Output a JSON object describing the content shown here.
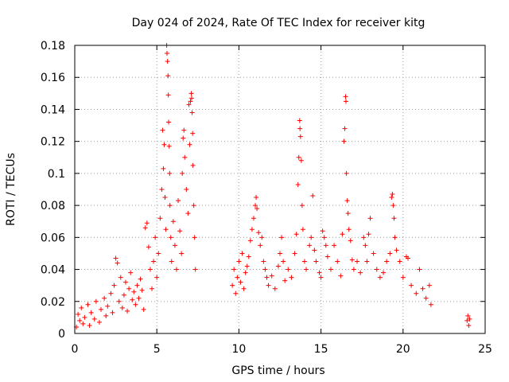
{
  "chart_data": {
    "type": "scatter",
    "title": "Day 024 of 2024, Rate Of TEC Index for receiver kitg",
    "xlabel": "GPS time / hours",
    "ylabel": "ROTI / TECUs",
    "xlim": [
      0,
      25
    ],
    "ylim": [
      0,
      0.18
    ],
    "x_ticks": [
      "0",
      "5",
      "10",
      "15",
      "20",
      "25"
    ],
    "y_ticks": [
      "0",
      "0.02",
      "0.04",
      "0.06",
      "0.08",
      "0.1",
      "0.12",
      "0.14",
      "0.16",
      "0.18"
    ],
    "grid": true,
    "marker": "plus",
    "color": "#ff0000",
    "series": [
      {
        "name": "ROTI",
        "points": [
          [
            0.1,
            0.004
          ],
          [
            0.2,
            0.012
          ],
          [
            0.3,
            0.008
          ],
          [
            0.4,
            0.016
          ],
          [
            0.5,
            0.006
          ],
          [
            0.6,
            0.01
          ],
          [
            0.8,
            0.018
          ],
          [
            0.9,
            0.005
          ],
          [
            1.0,
            0.013
          ],
          [
            1.2,
            0.009
          ],
          [
            1.3,
            0.02
          ],
          [
            1.5,
            0.007
          ],
          [
            1.6,
            0.015
          ],
          [
            1.8,
            0.022
          ],
          [
            1.9,
            0.011
          ],
          [
            2.0,
            0.017
          ],
          [
            2.2,
            0.025
          ],
          [
            2.3,
            0.013
          ],
          [
            2.4,
            0.03
          ],
          [
            2.5,
            0.047
          ],
          [
            2.6,
            0.044
          ],
          [
            2.7,
            0.02
          ],
          [
            2.8,
            0.035
          ],
          [
            2.9,
            0.016
          ],
          [
            3.0,
            0.024
          ],
          [
            3.1,
            0.032
          ],
          [
            3.2,
            0.014
          ],
          [
            3.3,
            0.028
          ],
          [
            3.4,
            0.038
          ],
          [
            3.5,
            0.021
          ],
          [
            3.6,
            0.026
          ],
          [
            3.7,
            0.018
          ],
          [
            3.8,
            0.03
          ],
          [
            3.9,
            0.022
          ],
          [
            4.0,
            0.034
          ],
          [
            4.1,
            0.027
          ],
          [
            4.2,
            0.015
          ],
          [
            4.3,
            0.066
          ],
          [
            4.4,
            0.069
          ],
          [
            4.5,
            0.054
          ],
          [
            4.6,
            0.04
          ],
          [
            4.7,
            0.028
          ],
          [
            4.8,
            0.045
          ],
          [
            4.9,
            0.06
          ],
          [
            5.0,
            0.035
          ],
          [
            5.1,
            0.05
          ],
          [
            5.2,
            0.072
          ],
          [
            5.3,
            0.09
          ],
          [
            5.35,
            0.127
          ],
          [
            5.4,
            0.103
          ],
          [
            5.45,
            0.118
          ],
          [
            5.5,
            0.085
          ],
          [
            5.55,
            0.065
          ],
          [
            5.6,
            0.18
          ],
          [
            5.62,
            0.175
          ],
          [
            5.65,
            0.17
          ],
          [
            5.68,
            0.161
          ],
          [
            5.7,
            0.149
          ],
          [
            5.72,
            0.132
          ],
          [
            5.75,
            0.117
          ],
          [
            5.78,
            0.1
          ],
          [
            5.8,
            0.08
          ],
          [
            5.85,
            0.06
          ],
          [
            5.9,
            0.045
          ],
          [
            6.0,
            0.07
          ],
          [
            6.1,
            0.055
          ],
          [
            6.2,
            0.04
          ],
          [
            6.3,
            0.083
          ],
          [
            6.4,
            0.064
          ],
          [
            6.5,
            0.05
          ],
          [
            6.55,
            0.1
          ],
          [
            6.6,
            0.122
          ],
          [
            6.65,
            0.127
          ],
          [
            6.7,
            0.11
          ],
          [
            6.8,
            0.09
          ],
          [
            6.9,
            0.075
          ],
          [
            6.95,
            0.143
          ],
          [
            7.0,
            0.118
          ],
          [
            7.05,
            0.145
          ],
          [
            7.1,
            0.15
          ],
          [
            7.12,
            0.147
          ],
          [
            7.15,
            0.138
          ],
          [
            7.18,
            0.125
          ],
          [
            7.2,
            0.105
          ],
          [
            7.25,
            0.08
          ],
          [
            7.3,
            0.06
          ],
          [
            7.35,
            0.04
          ],
          [
            9.6,
            0.03
          ],
          [
            9.7,
            0.04
          ],
          [
            9.8,
            0.025
          ],
          [
            9.9,
            0.035
          ],
          [
            10.0,
            0.045
          ],
          [
            10.1,
            0.032
          ],
          [
            10.2,
            0.05
          ],
          [
            10.3,
            0.028
          ],
          [
            10.4,
            0.038
          ],
          [
            10.5,
            0.042
          ],
          [
            10.6,
            0.048
          ],
          [
            10.7,
            0.058
          ],
          [
            10.8,
            0.065
          ],
          [
            10.9,
            0.072
          ],
          [
            11.0,
            0.08
          ],
          [
            11.05,
            0.085
          ],
          [
            11.1,
            0.078
          ],
          [
            11.2,
            0.063
          ],
          [
            11.3,
            0.055
          ],
          [
            11.4,
            0.06
          ],
          [
            11.5,
            0.045
          ],
          [
            11.6,
            0.04
          ],
          [
            11.7,
            0.035
          ],
          [
            11.8,
            0.03
          ],
          [
            12.0,
            0.036
          ],
          [
            12.2,
            0.028
          ],
          [
            12.4,
            0.042
          ],
          [
            12.5,
            0.05
          ],
          [
            12.6,
            0.06
          ],
          [
            12.7,
            0.045
          ],
          [
            12.8,
            0.033
          ],
          [
            13.0,
            0.04
          ],
          [
            13.2,
            0.035
          ],
          [
            13.4,
            0.05
          ],
          [
            13.5,
            0.062
          ],
          [
            13.6,
            0.093
          ],
          [
            13.65,
            0.11
          ],
          [
            13.7,
            0.133
          ],
          [
            13.72,
            0.128
          ],
          [
            13.75,
            0.123
          ],
          [
            13.8,
            0.108
          ],
          [
            13.85,
            0.08
          ],
          [
            13.9,
            0.065
          ],
          [
            14.0,
            0.045
          ],
          [
            14.1,
            0.04
          ],
          [
            14.3,
            0.055
          ],
          [
            14.4,
            0.06
          ],
          [
            14.5,
            0.086
          ],
          [
            14.6,
            0.052
          ],
          [
            14.7,
            0.045
          ],
          [
            14.9,
            0.038
          ],
          [
            15.0,
            0.035
          ],
          [
            15.1,
            0.064
          ],
          [
            15.2,
            0.06
          ],
          [
            15.3,
            0.055
          ],
          [
            15.4,
            0.048
          ],
          [
            15.6,
            0.04
          ],
          [
            15.8,
            0.055
          ],
          [
            16.0,
            0.045
          ],
          [
            16.2,
            0.036
          ],
          [
            16.3,
            0.062
          ],
          [
            16.4,
            0.12
          ],
          [
            16.45,
            0.128
          ],
          [
            16.5,
            0.148
          ],
          [
            16.52,
            0.145
          ],
          [
            16.55,
            0.1
          ],
          [
            16.6,
            0.083
          ],
          [
            16.65,
            0.075
          ],
          [
            16.7,
            0.065
          ],
          [
            16.8,
            0.058
          ],
          [
            16.9,
            0.046
          ],
          [
            17.0,
            0.04
          ],
          [
            17.2,
            0.045
          ],
          [
            17.4,
            0.038
          ],
          [
            17.6,
            0.06
          ],
          [
            17.7,
            0.055
          ],
          [
            17.8,
            0.045
          ],
          [
            17.9,
            0.062
          ],
          [
            18.0,
            0.072
          ],
          [
            18.2,
            0.05
          ],
          [
            18.4,
            0.04
          ],
          [
            18.6,
            0.035
          ],
          [
            18.8,
            0.038
          ],
          [
            19.0,
            0.045
          ],
          [
            19.2,
            0.05
          ],
          [
            19.3,
            0.085
          ],
          [
            19.35,
            0.087
          ],
          [
            19.4,
            0.08
          ],
          [
            19.45,
            0.072
          ],
          [
            19.5,
            0.06
          ],
          [
            19.6,
            0.052
          ],
          [
            19.8,
            0.045
          ],
          [
            20.0,
            0.035
          ],
          [
            20.2,
            0.048
          ],
          [
            20.3,
            0.047
          ],
          [
            20.5,
            0.03
          ],
          [
            20.8,
            0.025
          ],
          [
            21.0,
            0.04
          ],
          [
            21.2,
            0.028
          ],
          [
            21.4,
            0.022
          ],
          [
            21.6,
            0.03
          ],
          [
            21.7,
            0.018
          ],
          [
            23.9,
            0.008
          ],
          [
            23.95,
            0.011
          ],
          [
            24.0,
            0.005
          ],
          [
            24.05,
            0.009
          ]
        ]
      }
    ]
  }
}
